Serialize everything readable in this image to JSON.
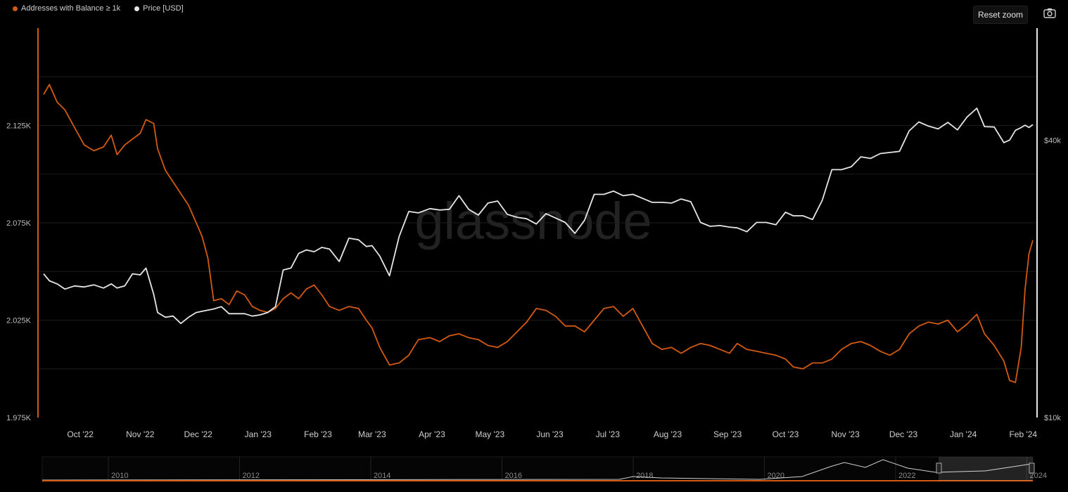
{
  "legend": {
    "series1": "Addresses with Balance ≥ 1k",
    "series2": "Price [USD]"
  },
  "toolbar": {
    "reset_zoom": "Reset zoom"
  },
  "icons": {
    "camera": "camera-icon"
  },
  "colors": {
    "addresses": "#d35a10",
    "price": "#e6e6e6",
    "background": "#000000",
    "grid": "#1c1c1c"
  },
  "watermark": "glassnode",
  "chart_data": {
    "type": "line",
    "x_tick_labels": [
      "Oct '22",
      "Nov '22",
      "Dec '22",
      "Jan '23",
      "Feb '23",
      "Mar '23",
      "Apr '23",
      "May '23",
      "Jun '23",
      "Jul '23",
      "Aug '23",
      "Sep '23",
      "Oct '23",
      "Nov '23",
      "Dec '23",
      "Jan '24",
      "Feb '24"
    ],
    "x_range": [
      "2022-09-12",
      "2024-02-06"
    ],
    "y_left": {
      "label": "",
      "ticks": [
        "2.125K",
        "2.075K",
        "2.025K",
        "1.975K"
      ],
      "range": [
        1975,
        2175
      ]
    },
    "y_right": {
      "label": "",
      "ticks": [
        "$40k",
        "$10k"
      ],
      "scale": "log",
      "range": [
        10000,
        70000
      ]
    },
    "grid": "horizontal",
    "legend_position": "top-left",
    "series": [
      {
        "name": "Addresses with Balance ≥ 1k",
        "axis": "left",
        "points": [
          [
            "2022-09-12",
            2141
          ],
          [
            "2022-09-15",
            2146
          ],
          [
            "2022-09-19",
            2137
          ],
          [
            "2022-09-23",
            2133
          ],
          [
            "2022-09-28",
            2124
          ],
          [
            "2022-10-03",
            2115
          ],
          [
            "2022-10-08",
            2112
          ],
          [
            "2022-10-13",
            2114
          ],
          [
            "2022-10-17",
            2120
          ],
          [
            "2022-10-20",
            2110
          ],
          [
            "2022-10-24",
            2115
          ],
          [
            "2022-10-28",
            2118
          ],
          [
            "2022-11-01",
            2121
          ],
          [
            "2022-11-04",
            2128
          ],
          [
            "2022-11-08",
            2126
          ],
          [
            "2022-11-10",
            2113
          ],
          [
            "2022-11-14",
            2102
          ],
          [
            "2022-11-18",
            2096
          ],
          [
            "2022-11-22",
            2090
          ],
          [
            "2022-11-26",
            2084
          ],
          [
            "2022-11-30",
            2075
          ],
          [
            "2022-12-03",
            2068
          ],
          [
            "2022-12-06",
            2057
          ],
          [
            "2022-12-09",
            2035
          ],
          [
            "2022-12-13",
            2036
          ],
          [
            "2022-12-17",
            2033
          ],
          [
            "2022-12-21",
            2040
          ],
          [
            "2022-12-25",
            2038
          ],
          [
            "2022-12-29",
            2032
          ],
          [
            "2023-01-02",
            2030
          ],
          [
            "2023-01-06",
            2029
          ],
          [
            "2023-01-10",
            2031
          ],
          [
            "2023-01-14",
            2036
          ],
          [
            "2023-01-18",
            2039
          ],
          [
            "2023-01-22",
            2036
          ],
          [
            "2023-01-26",
            2041
          ],
          [
            "2023-01-30",
            2043
          ],
          [
            "2023-02-03",
            2038
          ],
          [
            "2023-02-07",
            2032
          ],
          [
            "2023-02-12",
            2030
          ],
          [
            "2023-02-17",
            2032
          ],
          [
            "2023-02-22",
            2031
          ],
          [
            "2023-02-26",
            2025
          ],
          [
            "2023-03-01",
            2021
          ],
          [
            "2023-03-05",
            2011
          ],
          [
            "2023-03-10",
            2002
          ],
          [
            "2023-03-15",
            2003
          ],
          [
            "2023-03-20",
            2007
          ],
          [
            "2023-03-25",
            2015
          ],
          [
            "2023-03-31",
            2016
          ],
          [
            "2023-04-05",
            2014
          ],
          [
            "2023-04-10",
            2017
          ],
          [
            "2023-04-15",
            2018
          ],
          [
            "2023-04-20",
            2016
          ],
          [
            "2023-04-25",
            2015
          ],
          [
            "2023-04-30",
            2012
          ],
          [
            "2023-05-05",
            2011
          ],
          [
            "2023-05-10",
            2014
          ],
          [
            "2023-05-15",
            2019
          ],
          [
            "2023-05-20",
            2024
          ],
          [
            "2023-05-25",
            2031
          ],
          [
            "2023-05-30",
            2030
          ],
          [
            "2023-06-04",
            2027
          ],
          [
            "2023-06-09",
            2022
          ],
          [
            "2023-06-14",
            2022
          ],
          [
            "2023-06-19",
            2019
          ],
          [
            "2023-06-24",
            2025
          ],
          [
            "2023-06-29",
            2031
          ],
          [
            "2023-07-04",
            2032
          ],
          [
            "2023-07-09",
            2027
          ],
          [
            "2023-07-14",
            2031
          ],
          [
            "2023-07-19",
            2022
          ],
          [
            "2023-07-24",
            2013
          ],
          [
            "2023-07-29",
            2010
          ],
          [
            "2023-08-03",
            2011
          ],
          [
            "2023-08-08",
            2008
          ],
          [
            "2023-08-13",
            2011
          ],
          [
            "2023-08-18",
            2013
          ],
          [
            "2023-08-23",
            2012
          ],
          [
            "2023-08-28",
            2010
          ],
          [
            "2023-09-02",
            2008
          ],
          [
            "2023-09-06",
            2013
          ],
          [
            "2023-09-11",
            2010
          ],
          [
            "2023-09-16",
            2009
          ],
          [
            "2023-09-21",
            2008
          ],
          [
            "2023-09-26",
            2007
          ],
          [
            "2023-10-01",
            2005
          ],
          [
            "2023-10-05",
            2001
          ],
          [
            "2023-10-10",
            2000
          ],
          [
            "2023-10-15",
            2003
          ],
          [
            "2023-10-20",
            2003
          ],
          [
            "2023-10-25",
            2005
          ],
          [
            "2023-10-30",
            2010
          ],
          [
            "2023-11-04",
            2013
          ],
          [
            "2023-11-09",
            2014
          ],
          [
            "2023-11-14",
            2012
          ],
          [
            "2023-11-19",
            2009
          ],
          [
            "2023-11-24",
            2007
          ],
          [
            "2023-11-29",
            2010
          ],
          [
            "2023-12-04",
            2018
          ],
          [
            "2023-12-09",
            2022
          ],
          [
            "2023-12-14",
            2024
          ],
          [
            "2023-12-19",
            2023
          ],
          [
            "2023-12-24",
            2025
          ],
          [
            "2023-12-29",
            2019
          ],
          [
            "2024-01-03",
            2023
          ],
          [
            "2024-01-08",
            2028
          ],
          [
            "2024-01-12",
            2018
          ],
          [
            "2024-01-17",
            2012
          ],
          [
            "2024-01-22",
            2004
          ],
          [
            "2024-01-25",
            1994
          ],
          [
            "2024-01-28",
            1993
          ],
          [
            "2024-01-31",
            2011
          ],
          [
            "2024-02-02",
            2041
          ],
          [
            "2024-02-04",
            2059
          ],
          [
            "2024-02-06",
            2066
          ]
        ]
      },
      {
        "name": "Price [USD]",
        "axis": "right",
        "points": [
          [
            "2022-09-12",
            20500
          ],
          [
            "2022-09-15",
            19800
          ],
          [
            "2022-09-19",
            19500
          ],
          [
            "2022-09-23",
            19000
          ],
          [
            "2022-09-28",
            19300
          ],
          [
            "2022-10-03",
            19200
          ],
          [
            "2022-10-08",
            19400
          ],
          [
            "2022-10-13",
            19100
          ],
          [
            "2022-10-17",
            19500
          ],
          [
            "2022-10-20",
            19100
          ],
          [
            "2022-10-24",
            19300
          ],
          [
            "2022-10-28",
            20500
          ],
          [
            "2022-11-01",
            20400
          ],
          [
            "2022-11-04",
            21100
          ],
          [
            "2022-11-08",
            18500
          ],
          [
            "2022-11-10",
            16900
          ],
          [
            "2022-11-14",
            16500
          ],
          [
            "2022-11-18",
            16600
          ],
          [
            "2022-11-22",
            16000
          ],
          [
            "2022-11-26",
            16500
          ],
          [
            "2022-11-30",
            16900
          ],
          [
            "2022-12-03",
            17000
          ],
          [
            "2022-12-06",
            17100
          ],
          [
            "2022-12-09",
            17200
          ],
          [
            "2022-12-13",
            17400
          ],
          [
            "2022-12-17",
            16800
          ],
          [
            "2022-12-21",
            16800
          ],
          [
            "2022-12-25",
            16800
          ],
          [
            "2022-12-29",
            16600
          ],
          [
            "2023-01-02",
            16700
          ],
          [
            "2023-01-06",
            16900
          ],
          [
            "2023-01-10",
            17400
          ],
          [
            "2023-01-14",
            20900
          ],
          [
            "2023-01-18",
            21100
          ],
          [
            "2023-01-22",
            22700
          ],
          [
            "2023-01-26",
            23100
          ],
          [
            "2023-01-30",
            22900
          ],
          [
            "2023-02-03",
            23400
          ],
          [
            "2023-02-07",
            23200
          ],
          [
            "2023-02-12",
            21800
          ],
          [
            "2023-02-17",
            24500
          ],
          [
            "2023-02-22",
            24300
          ],
          [
            "2023-02-26",
            23500
          ],
          [
            "2023-03-01",
            23600
          ],
          [
            "2023-03-05",
            22400
          ],
          [
            "2023-03-10",
            20300
          ],
          [
            "2023-03-15",
            24700
          ],
          [
            "2023-03-20",
            28000
          ],
          [
            "2023-03-25",
            27800
          ],
          [
            "2023-03-31",
            28400
          ],
          [
            "2023-04-05",
            28200
          ],
          [
            "2023-04-10",
            28300
          ],
          [
            "2023-04-15",
            30300
          ],
          [
            "2023-04-20",
            28300
          ],
          [
            "2023-04-25",
            27500
          ],
          [
            "2023-04-30",
            29200
          ],
          [
            "2023-05-05",
            29500
          ],
          [
            "2023-05-10",
            27600
          ],
          [
            "2023-05-15",
            27200
          ],
          [
            "2023-05-20",
            27000
          ],
          [
            "2023-05-25",
            26300
          ],
          [
            "2023-05-30",
            27700
          ],
          [
            "2023-06-04",
            27100
          ],
          [
            "2023-06-09",
            26500
          ],
          [
            "2023-06-14",
            25100
          ],
          [
            "2023-06-19",
            26800
          ],
          [
            "2023-06-24",
            30500
          ],
          [
            "2023-06-29",
            30500
          ],
          [
            "2023-07-04",
            31000
          ],
          [
            "2023-07-09",
            30300
          ],
          [
            "2023-07-14",
            30500
          ],
          [
            "2023-07-19",
            29900
          ],
          [
            "2023-07-24",
            29300
          ],
          [
            "2023-07-29",
            29300
          ],
          [
            "2023-08-03",
            29200
          ],
          [
            "2023-08-08",
            29800
          ],
          [
            "2023-08-13",
            29400
          ],
          [
            "2023-08-18",
            26500
          ],
          [
            "2023-08-23",
            26000
          ],
          [
            "2023-08-28",
            26100
          ],
          [
            "2023-09-02",
            25900
          ],
          [
            "2023-09-06",
            25800
          ],
          [
            "2023-09-11",
            25300
          ],
          [
            "2023-09-16",
            26500
          ],
          [
            "2023-09-21",
            26500
          ],
          [
            "2023-09-26",
            26200
          ],
          [
            "2023-10-01",
            27900
          ],
          [
            "2023-10-05",
            27400
          ],
          [
            "2023-10-10",
            27400
          ],
          [
            "2023-10-15",
            26900
          ],
          [
            "2023-10-20",
            29600
          ],
          [
            "2023-10-25",
            34500
          ],
          [
            "2023-10-30",
            34500
          ],
          [
            "2023-11-04",
            35000
          ],
          [
            "2023-11-09",
            36800
          ],
          [
            "2023-11-14",
            36500
          ],
          [
            "2023-11-19",
            37400
          ],
          [
            "2023-11-24",
            37600
          ],
          [
            "2023-11-29",
            37800
          ],
          [
            "2023-12-04",
            41900
          ],
          [
            "2023-12-09",
            43800
          ],
          [
            "2023-12-14",
            42900
          ],
          [
            "2023-12-19",
            42300
          ],
          [
            "2023-12-24",
            43700
          ],
          [
            "2023-12-29",
            42100
          ],
          [
            "2024-01-03",
            44900
          ],
          [
            "2024-01-08",
            46900
          ],
          [
            "2024-01-12",
            42800
          ],
          [
            "2024-01-17",
            42700
          ],
          [
            "2024-01-22",
            39500
          ],
          [
            "2024-01-25",
            40000
          ],
          [
            "2024-01-28",
            42000
          ],
          [
            "2024-01-31",
            42600
          ],
          [
            "2024-02-02",
            43100
          ],
          [
            "2024-02-04",
            42600
          ],
          [
            "2024-02-06",
            43200
          ]
        ]
      }
    ],
    "navigator": {
      "year_labels": [
        "2010",
        "2012",
        "2014",
        "2016",
        "2018",
        "2020",
        "2022",
        "2024"
      ]
    }
  }
}
